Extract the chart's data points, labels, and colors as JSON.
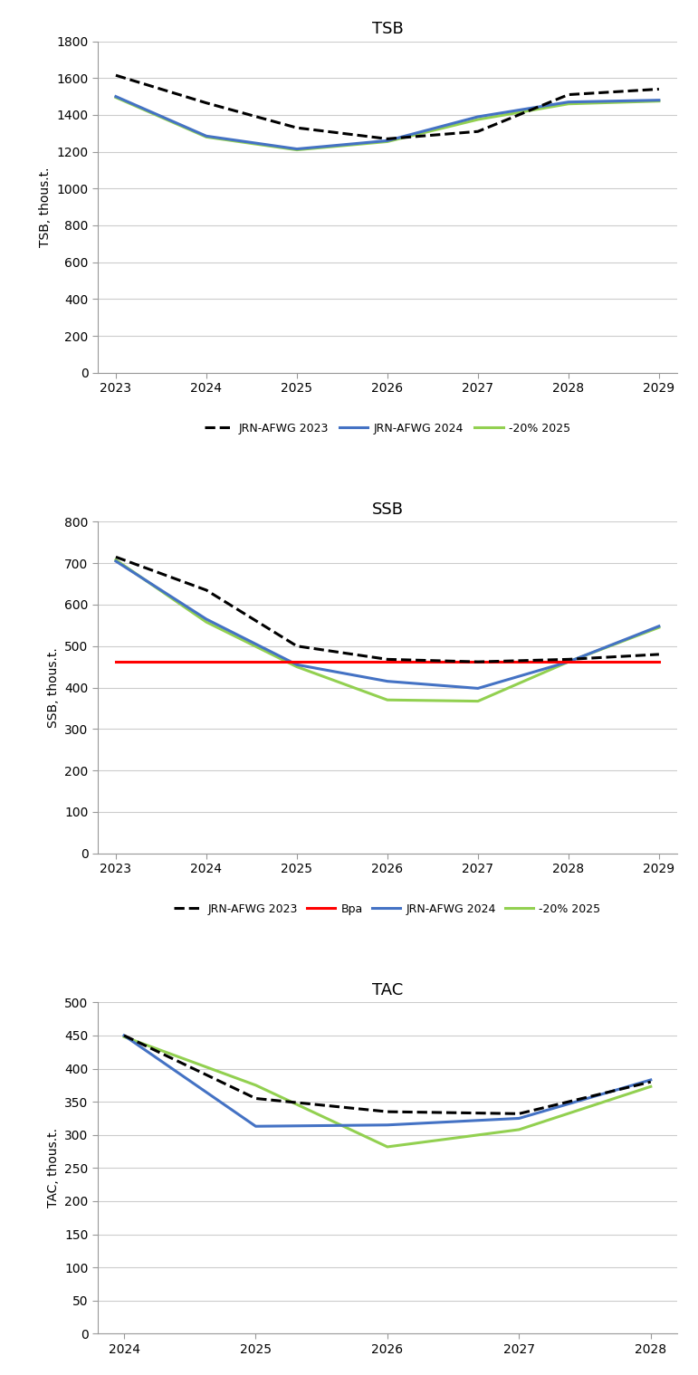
{
  "tsb": {
    "title": "TSB",
    "ylabel": "TSB, thous.t.",
    "xlim": [
      2023,
      2029
    ],
    "ylim": [
      0,
      1800
    ],
    "yticks": [
      0,
      200,
      400,
      600,
      800,
      1000,
      1200,
      1400,
      1600,
      1800
    ],
    "xticks": [
      2023,
      2024,
      2025,
      2026,
      2027,
      2028,
      2029
    ],
    "series": {
      "JRN-AFWG 2023": {
        "x": [
          2023,
          2024,
          2025,
          2026,
          2027,
          2028,
          2029
        ],
        "y": [
          1615,
          1465,
          1330,
          1270,
          1310,
          1510,
          1540
        ],
        "color": "#000000",
        "linestyle": "dashed",
        "linewidth": 2.2,
        "zorder": 3
      },
      "JRN-AFWG 2024": {
        "x": [
          2023,
          2024,
          2025,
          2026,
          2027,
          2028,
          2029
        ],
        "y": [
          1500,
          1285,
          1215,
          1260,
          1390,
          1470,
          1480
        ],
        "color": "#4472C4",
        "linestyle": "solid",
        "linewidth": 2.2,
        "zorder": 2
      },
      "-20% 2025": {
        "x": [
          2023,
          2024,
          2025,
          2026,
          2027,
          2028,
          2029
        ],
        "y": [
          1495,
          1280,
          1210,
          1255,
          1375,
          1460,
          1475
        ],
        "color": "#92D050",
        "linestyle": "solid",
        "linewidth": 2.2,
        "zorder": 1
      }
    }
  },
  "ssb": {
    "title": "SSB",
    "ylabel": "SSB, thous.t.",
    "xlim": [
      2023,
      2029
    ],
    "ylim": [
      0,
      800
    ],
    "yticks": [
      0,
      100,
      200,
      300,
      400,
      500,
      600,
      700,
      800
    ],
    "xticks": [
      2023,
      2024,
      2025,
      2026,
      2027,
      2028,
      2029
    ],
    "bpa": 462,
    "bpa_color": "#FF0000",
    "series": {
      "JRN-AFWG 2023": {
        "x": [
          2023,
          2024,
          2025,
          2026,
          2027,
          2028,
          2029
        ],
        "y": [
          715,
          635,
          500,
          468,
          462,
          468,
          480
        ],
        "color": "#000000",
        "linestyle": "dashed",
        "linewidth": 2.2,
        "zorder": 4
      },
      "JRN-AFWG 2024": {
        "x": [
          2023,
          2024,
          2025,
          2026,
          2027,
          2028,
          2029
        ],
        "y": [
          705,
          565,
          455,
          415,
          398,
          462,
          548
        ],
        "color": "#4472C4",
        "linestyle": "solid",
        "linewidth": 2.2,
        "zorder": 2
      },
      "-20% 2025": {
        "x": [
          2023,
          2024,
          2025,
          2026,
          2027,
          2028,
          2029
        ],
        "y": [
          708,
          558,
          450,
          370,
          367,
          462,
          545
        ],
        "color": "#92D050",
        "linestyle": "solid",
        "linewidth": 2.2,
        "zorder": 1
      }
    }
  },
  "tac": {
    "title": "TAC",
    "ylabel": "TAC, thous.t.",
    "xlim": [
      2024,
      2028
    ],
    "ylim": [
      0,
      500
    ],
    "yticks": [
      0,
      50,
      100,
      150,
      200,
      250,
      300,
      350,
      400,
      450,
      500
    ],
    "xticks": [
      2024,
      2025,
      2026,
      2027,
      2028
    ],
    "series": {
      "JRN-AFWG 2023": {
        "x": [
          2024,
          2025,
          2026,
          2027,
          2028
        ],
        "y": [
          450,
          355,
          335,
          332,
          380
        ],
        "color": "#000000",
        "linestyle": "dashed",
        "linewidth": 2.2,
        "zorder": 3
      },
      "JRN-AFWG 2024": {
        "x": [
          2024,
          2025,
          2026,
          2027,
          2028
        ],
        "y": [
          450,
          313,
          315,
          325,
          383
        ],
        "color": "#4472C4",
        "linestyle": "solid",
        "linewidth": 2.2,
        "zorder": 2
      },
      "-20% 2025": {
        "x": [
          2024,
          2025,
          2026,
          2027,
          2028
        ],
        "y": [
          448,
          375,
          282,
          308,
          373
        ],
        "color": "#92D050",
        "linestyle": "solid",
        "linewidth": 2.2,
        "zorder": 1
      }
    }
  },
  "background_color": "#ffffff",
  "grid_color": "#cccccc",
  "legend_order": [
    "JRN-AFWG 2023",
    "JRN-AFWG 2024",
    "-20% 2025"
  ],
  "title_fontsize": 13,
  "label_fontsize": 10,
  "tick_fontsize": 10,
  "legend_fontsize": 9
}
